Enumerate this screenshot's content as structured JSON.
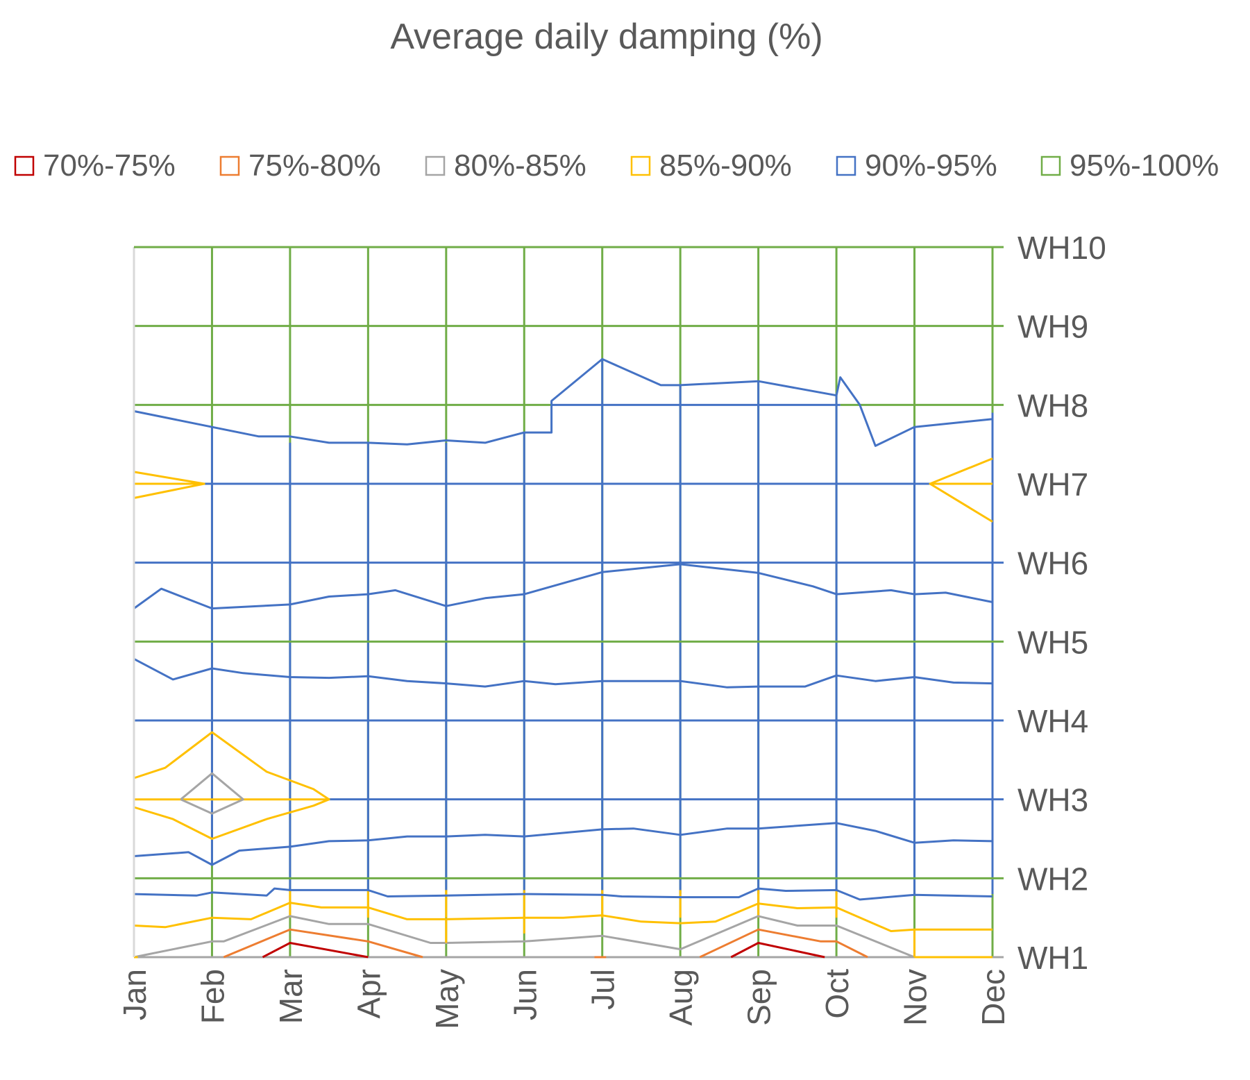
{
  "chart_data": {
    "type": "contour",
    "title": "Average daily damping (%)",
    "xlabel": "",
    "ylabel": "",
    "categories": [
      "Jan",
      "Feb",
      "Mar",
      "Apr",
      "May",
      "Jun",
      "Jul",
      "Aug",
      "Sep",
      "Oct",
      "Nov",
      "Dec"
    ],
    "y_categories": [
      "WH1",
      "WH2",
      "WH3",
      "WH4",
      "WH5",
      "WH6",
      "WH7",
      "WH8",
      "WH9",
      "WH10"
    ],
    "legend": [
      {
        "label": "70%-75%",
        "color": "#c00000"
      },
      {
        "label": "75%-80%",
        "color": "#ed7d31"
      },
      {
        "label": "80%-85%",
        "color": "#a5a5a5"
      },
      {
        "label": "85%-90%",
        "color": "#ffc000"
      },
      {
        "label": "90%-95%",
        "color": "#4472c4"
      },
      {
        "label": "95%-100%",
        "color": "#70ad47"
      }
    ],
    "contours": [
      {
        "band": "90%-95%",
        "color": "#4472c4",
        "points": [
          [
            0,
            7.92
          ],
          [
            1,
            7.72
          ],
          [
            1.6,
            7.6
          ],
          [
            2,
            7.6
          ],
          [
            2.5,
            7.52
          ],
          [
            3,
            7.52
          ],
          [
            3.5,
            7.5
          ],
          [
            4,
            7.55
          ],
          [
            4.5,
            7.52
          ],
          [
            5,
            7.65
          ],
          [
            5.35,
            7.65
          ],
          [
            5.35,
            8.05
          ],
          [
            6,
            8.58
          ],
          [
            6.75,
            8.25
          ],
          [
            7,
            8.25
          ],
          [
            8,
            8.3
          ],
          [
            9,
            8.12
          ],
          [
            9.05,
            8.35
          ],
          [
            9.3,
            8.0
          ],
          [
            9.5,
            7.48
          ],
          [
            10,
            7.72
          ],
          [
            11,
            7.82
          ],
          [
            11,
            7.9
          ]
        ]
      },
      {
        "band": "90%-95%",
        "color": "#4472c4",
        "points": [
          [
            0,
            5.42
          ],
          [
            0.35,
            5.67
          ],
          [
            1,
            5.42
          ],
          [
            2,
            5.47
          ],
          [
            2.5,
            5.57
          ],
          [
            3,
            5.6
          ],
          [
            3.35,
            5.65
          ],
          [
            4,
            5.45
          ],
          [
            4.5,
            5.55
          ],
          [
            5,
            5.6
          ],
          [
            6,
            5.88
          ],
          [
            7,
            5.98
          ],
          [
            8,
            5.87
          ],
          [
            8.7,
            5.7
          ],
          [
            9,
            5.6
          ],
          [
            9.7,
            5.65
          ],
          [
            10,
            5.6
          ],
          [
            10.4,
            5.62
          ],
          [
            11,
            5.5
          ]
        ]
      },
      {
        "band": "90%-95%",
        "color": "#4472c4",
        "points": [
          [
            0,
            4.78
          ],
          [
            0.5,
            4.52
          ],
          [
            1,
            4.66
          ],
          [
            1.4,
            4.6
          ],
          [
            2,
            4.55
          ],
          [
            2.5,
            4.54
          ],
          [
            3,
            4.56
          ],
          [
            3.5,
            4.5
          ],
          [
            4,
            4.47
          ],
          [
            4.5,
            4.43
          ],
          [
            5,
            4.5
          ],
          [
            5.4,
            4.46
          ],
          [
            6,
            4.5
          ],
          [
            7,
            4.5
          ],
          [
            7.6,
            4.42
          ],
          [
            8,
            4.43
          ],
          [
            8.6,
            4.43
          ],
          [
            9,
            4.57
          ],
          [
            9.5,
            4.5
          ],
          [
            10,
            4.55
          ],
          [
            10.5,
            4.48
          ],
          [
            11,
            4.47
          ]
        ]
      },
      {
        "band": "90%-95%",
        "color": "#4472c4",
        "points": [
          [
            0,
            2.28
          ],
          [
            0.7,
            2.33
          ],
          [
            1,
            2.17
          ],
          [
            1.35,
            2.35
          ],
          [
            2,
            2.4
          ],
          [
            2.5,
            2.47
          ],
          [
            3,
            2.48
          ],
          [
            3.5,
            2.53
          ],
          [
            4,
            2.53
          ],
          [
            4.5,
            2.55
          ],
          [
            5,
            2.53
          ],
          [
            6,
            2.62
          ],
          [
            6.4,
            2.63
          ],
          [
            7,
            2.55
          ],
          [
            7.6,
            2.63
          ],
          [
            8,
            2.63
          ],
          [
            9,
            2.7
          ],
          [
            9.5,
            2.6
          ],
          [
            10,
            2.45
          ],
          [
            10.5,
            2.48
          ],
          [
            11,
            2.47
          ]
        ]
      },
      {
        "band": "90%-95%",
        "color": "#4472c4",
        "points": [
          [
            0,
            1.8
          ],
          [
            0.8,
            1.78
          ],
          [
            1,
            1.82
          ],
          [
            1.7,
            1.78
          ],
          [
            1.8,
            1.87
          ],
          [
            2,
            1.85
          ],
          [
            3,
            1.85
          ],
          [
            3.25,
            1.77
          ],
          [
            4,
            1.78
          ],
          [
            5,
            1.8
          ],
          [
            6,
            1.79
          ],
          [
            6.25,
            1.77
          ],
          [
            7,
            1.76
          ],
          [
            7.5,
            1.76
          ],
          [
            7.75,
            1.76
          ],
          [
            8,
            1.87
          ],
          [
            8.35,
            1.84
          ],
          [
            9,
            1.85
          ],
          [
            9.3,
            1.73
          ],
          [
            10,
            1.79
          ],
          [
            11,
            1.77
          ]
        ]
      },
      {
        "band": "85%-90%",
        "color": "#ffc000",
        "points": [
          [
            0,
            1.4
          ],
          [
            0.4,
            1.38
          ],
          [
            1,
            1.5
          ],
          [
            1.5,
            1.48
          ],
          [
            2,
            1.69
          ],
          [
            2.4,
            1.63
          ],
          [
            3,
            1.63
          ],
          [
            3.5,
            1.48
          ],
          [
            4,
            1.48
          ],
          [
            5,
            1.5
          ],
          [
            5.5,
            1.5
          ],
          [
            6,
            1.53
          ],
          [
            6.5,
            1.45
          ],
          [
            7,
            1.43
          ],
          [
            7.45,
            1.45
          ],
          [
            8,
            1.68
          ],
          [
            8.5,
            1.62
          ],
          [
            9,
            1.63
          ],
          [
            9.7,
            1.33
          ],
          [
            10,
            1.35
          ],
          [
            11,
            1.35
          ]
        ]
      },
      {
        "band": "80%-85%",
        "color": "#a5a5a5",
        "points": [
          [
            0,
            1.0
          ],
          [
            1,
            1.2
          ],
          [
            1.15,
            1.2
          ],
          [
            2,
            1.52
          ],
          [
            2.5,
            1.42
          ],
          [
            3,
            1.42
          ],
          [
            3.8,
            1.18
          ],
          [
            4,
            1.18
          ],
          [
            5,
            1.2
          ],
          [
            6,
            1.27
          ],
          [
            7,
            1.1
          ],
          [
            8,
            1.52
          ],
          [
            8.5,
            1.4
          ],
          [
            9,
            1.4
          ],
          [
            10,
            1.0
          ]
        ]
      },
      {
        "band": "75%-80%",
        "color": "#ed7d31",
        "points": [
          [
            1.15,
            1.0
          ],
          [
            2,
            1.35
          ],
          [
            3,
            1.2
          ],
          [
            3.7,
            1.0
          ]
        ]
      },
      {
        "band": "75%-80%",
        "color": "#ed7d31",
        "points": [
          [
            7.25,
            1.0
          ],
          [
            8,
            1.35
          ],
          [
            8.8,
            1.2
          ],
          [
            9,
            1.2
          ],
          [
            9.4,
            1.0
          ]
        ]
      },
      {
        "band": "70%-75%",
        "color": "#c00000",
        "points": [
          [
            1.65,
            1.0
          ],
          [
            2,
            1.18
          ],
          [
            3,
            1.0
          ]
        ]
      },
      {
        "band": "70%-75%",
        "color": "#c00000",
        "points": [
          [
            7.65,
            1.0
          ],
          [
            8,
            1.18
          ],
          [
            8.85,
            1.0
          ]
        ]
      },
      {
        "band": "75%-80%",
        "color": "#ed7d31",
        "points": [
          [
            5.9,
            1.0
          ],
          [
            6.05,
            1.0
          ]
        ]
      },
      {
        "band": "85%-90%",
        "color": "#ffc000",
        "points": [
          [
            0,
            7.15
          ],
          [
            0.9,
            7.0
          ],
          [
            0,
            6.82
          ]
        ]
      },
      {
        "band": "85%-90%",
        "color": "#ffc000",
        "points": [
          [
            0,
            7.0
          ],
          [
            0.9,
            7.0
          ]
        ]
      },
      {
        "band": "85%-90%",
        "color": "#ffc000",
        "points": [
          [
            11,
            7.32
          ],
          [
            10.2,
            7.0
          ],
          [
            11,
            6.52
          ]
        ]
      },
      {
        "band": "85%-90%",
        "color": "#ffc000",
        "points": [
          [
            10.2,
            7.0
          ],
          [
            11,
            7.0
          ]
        ]
      },
      {
        "band": "85%-90%",
        "color": "#ffc000",
        "points": [
          [
            0,
            3.27
          ],
          [
            0.4,
            3.4
          ],
          [
            1,
            3.85
          ],
          [
            1.7,
            3.35
          ],
          [
            2.3,
            3.13
          ],
          [
            2.5,
            3.0
          ],
          [
            2.3,
            2.92
          ],
          [
            1.7,
            2.75
          ],
          [
            1,
            2.5
          ],
          [
            0.5,
            2.75
          ],
          [
            0,
            2.9
          ]
        ]
      },
      {
        "band": "85%-90%",
        "color": "#ffc000",
        "points": [
          [
            0,
            3.0
          ],
          [
            2.5,
            3.0
          ]
        ]
      },
      {
        "band": "80%-85%",
        "color": "#a5a5a5",
        "points": [
          [
            0.6,
            3.0
          ],
          [
            1,
            3.33
          ],
          [
            1.4,
            3.0
          ],
          [
            1,
            2.82
          ],
          [
            0.6,
            3.0
          ]
        ]
      },
      {
        "band": "85%-90%",
        "color": "#ffc000",
        "points": [
          [
            0,
            1.0
          ],
          [
            0.05,
            1.0
          ]
        ]
      },
      {
        "band": "85%-90%",
        "color": "#ffc000",
        "points": [
          [
            10,
            1.0
          ],
          [
            11,
            1.0
          ]
        ]
      },
      {
        "band": "85%-90%",
        "color": "#ffc000",
        "points": [
          [
            5,
            1.3
          ],
          [
            5,
            1.5
          ]
        ]
      },
      {
        "band": "85%-90%",
        "color": "#ffc000",
        "points": [
          [
            4,
            1.18
          ],
          [
            4,
            1.48
          ]
        ]
      },
      {
        "band": "85%-90%",
        "color": "#ffc000",
        "points": [
          [
            10,
            1.0
          ],
          [
            10,
            1.35
          ]
        ]
      }
    ],
    "grid": {
      "blue_rows": [
        "WH3",
        "WH4",
        "WH6",
        "WH7"
      ],
      "blue_row_start": {
        "WH3": 2.5,
        "WH7": 0.9
      },
      "blue_row_end": {
        "WH7": 10.2
      },
      "partial_rows": [
        {
          "row": "WH8",
          "from": 5.35,
          "to": 9.05,
          "color": "#4472c4"
        }
      ],
      "green_rows": [
        "WH2",
        "WH5",
        "WH9",
        "WH10"
      ],
      "green_row_segments": [
        {
          "row": "WH8",
          "from": 0,
          "to": 5.35
        },
        {
          "row": "WH8",
          "from": 9.05,
          "to": 11
        }
      ]
    }
  }
}
